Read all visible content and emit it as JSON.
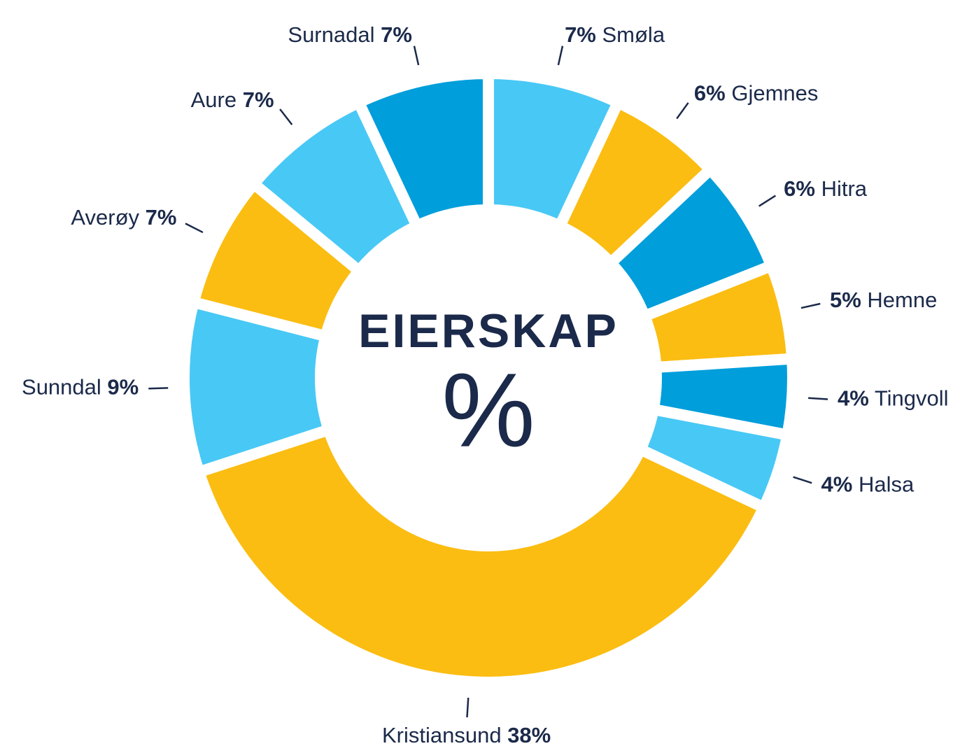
{
  "chart_data": {
    "type": "donut",
    "center_title": "EIERSKAP",
    "center_label": "%",
    "categories": [
      "Smøla",
      "Gjemnes",
      "Hitra",
      "Hemne",
      "Tingvoll",
      "Halsa",
      "Kristiansund",
      "Sunndal",
      "Averøy",
      "Aure",
      "Surnadal"
    ],
    "values": [
      7,
      6,
      6,
      5,
      4,
      4,
      38,
      9,
      7,
      7,
      7
    ],
    "value_labels": [
      "7%",
      "6%",
      "6%",
      "5%",
      "4%",
      "4%",
      "38%",
      "9%",
      "7%",
      "7%",
      "7%"
    ],
    "colors": [
      "#48c8f5",
      "#fbbd12",
      "#009edb",
      "#fbbd12",
      "#009edb",
      "#48c8f5",
      "#fbbd12",
      "#48c8f5",
      "#fbbd12",
      "#48c8f5",
      "#009edb"
    ]
  }
}
